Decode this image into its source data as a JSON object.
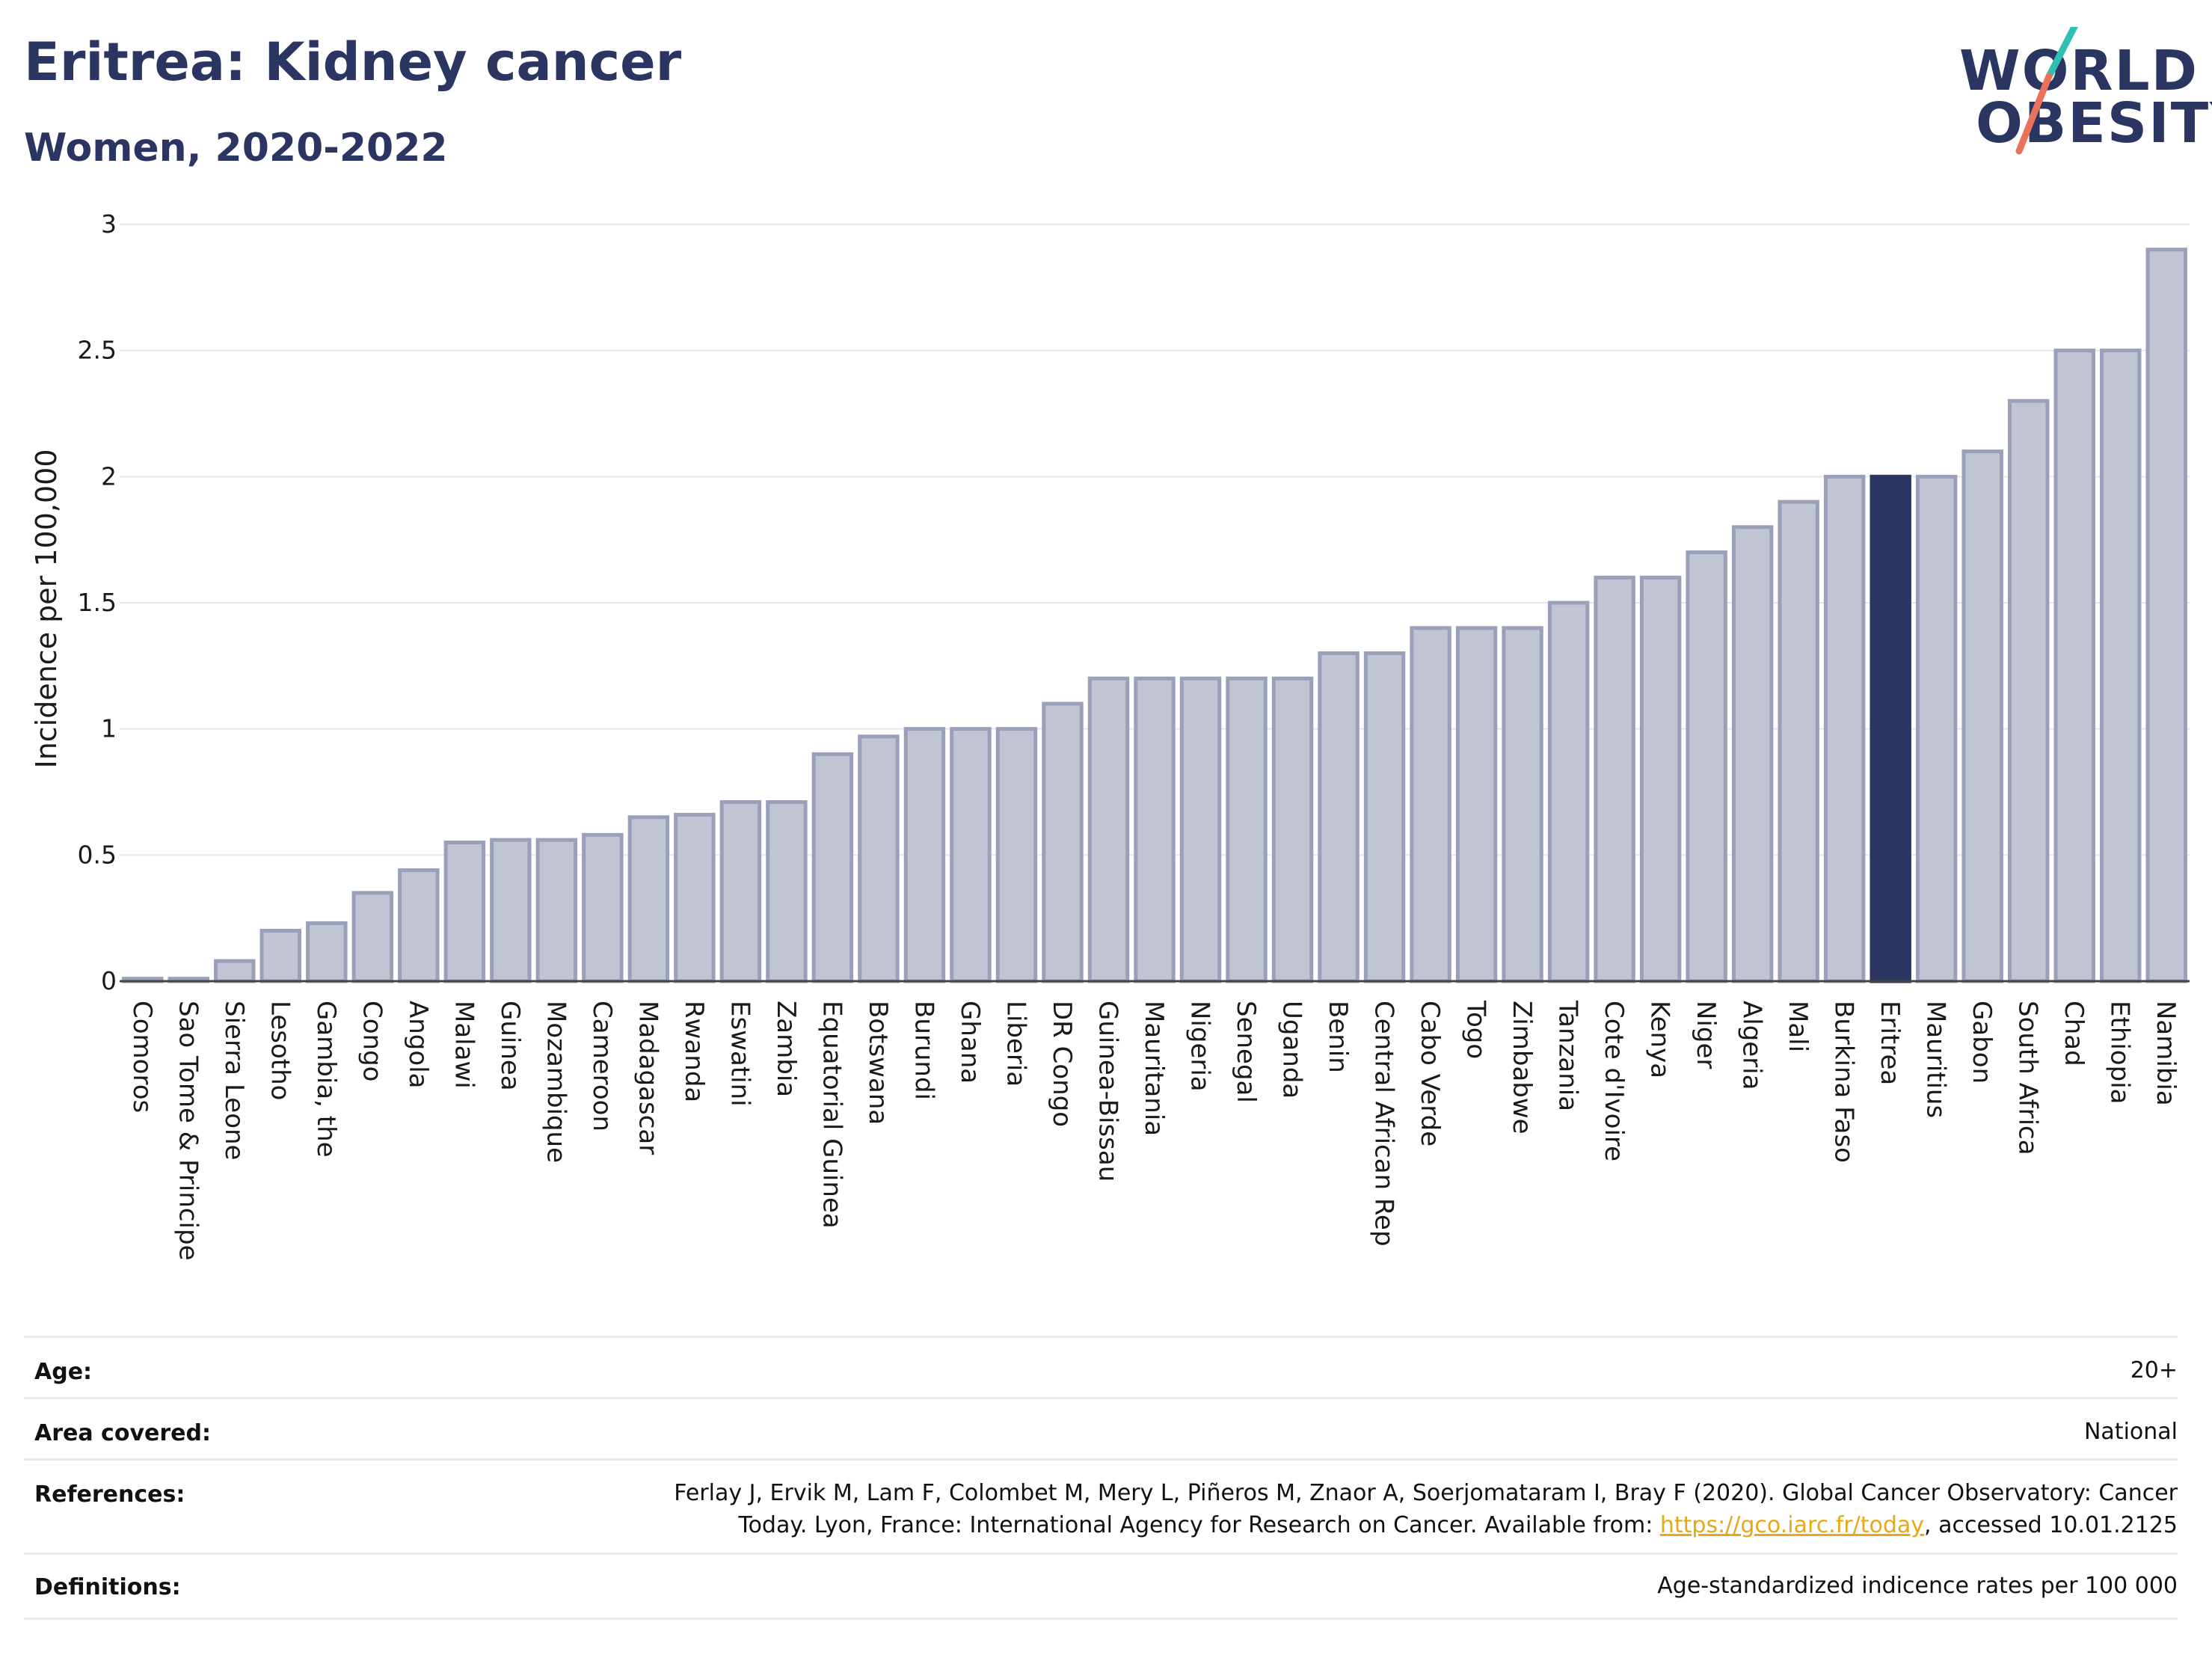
{
  "header": {
    "title": "Eritrea: Kidney cancer",
    "subtitle": "Women, 2020-2022"
  },
  "logo": {
    "line1": "WORLD",
    "line2": "OBESITY",
    "slash_colors": [
      "#2fbfb3",
      "#e8735a"
    ]
  },
  "chart_data": {
    "type": "bar",
    "ylabel": "Incidence per 100,000",
    "ylim": [
      0,
      3
    ],
    "yticks": [
      "0",
      "0.5",
      "1",
      "1.5",
      "2",
      "2.5",
      "3"
    ],
    "grid": true,
    "highlight": "Eritrea",
    "colors": {
      "bar": "#c0c4d3",
      "bar_border": "#9aa0ba",
      "highlight": "#2b3561"
    },
    "categories": [
      "Comoros",
      "Sao Tome & Principe",
      "Sierra Leone",
      "Lesotho",
      "Gambia, the",
      "Congo",
      "Angola",
      "Malawi",
      "Guinea",
      "Mozambique",
      "Cameroon",
      "Madagascar",
      "Rwanda",
      "Eswatini",
      "Zambia",
      "Equatorial Guinea",
      "Botswana",
      "Burundi",
      "Ghana",
      "Liberia",
      "DR Congo",
      "Guinea-Bissau",
      "Mauritania",
      "Nigeria",
      "Senegal",
      "Uganda",
      "Benin",
      "Central African Rep",
      "Cabo Verde",
      "Togo",
      "Zimbabwe",
      "Tanzania",
      "Cote d'Ivoire",
      "Kenya",
      "Niger",
      "Algeria",
      "Mali",
      "Burkina Faso",
      "Eritrea",
      "Mauritius",
      "Gabon",
      "South Africa",
      "Chad",
      "Ethiopia",
      "Namibia"
    ],
    "values": [
      0.01,
      0.01,
      0.08,
      0.2,
      0.23,
      0.35,
      0.44,
      0.55,
      0.56,
      0.56,
      0.58,
      0.65,
      0.66,
      0.71,
      0.71,
      0.9,
      0.97,
      1.0,
      1.0,
      1.0,
      1.1,
      1.2,
      1.2,
      1.2,
      1.2,
      1.2,
      1.3,
      1.3,
      1.4,
      1.4,
      1.4,
      1.5,
      1.6,
      1.6,
      1.7,
      1.8,
      1.9,
      2.0,
      2.0,
      2.0,
      2.1,
      2.3,
      2.5,
      2.5,
      2.9
    ]
  },
  "info": {
    "age": {
      "label": "Age:",
      "value": "20+"
    },
    "area": {
      "label": "Area covered:",
      "value": "National"
    },
    "references": {
      "label": "References:",
      "line1": "Ferlay J, Ervik M, Lam F, Colombet M, Mery L, Piñeros M, Znaor A, Soerjomataram I, Bray F (2020). Global Cancer Observatory: Cancer",
      "line2_pre": "Today. Lyon, France: International Agency for Research on Cancer. Available from: ",
      "link": "https://gco.iarc.fr/today",
      "line2_post": ", accessed 10.01.2125"
    },
    "definitions": {
      "label": "Definitions:",
      "value": "Age-standardized indicence rates per 100 000"
    }
  }
}
